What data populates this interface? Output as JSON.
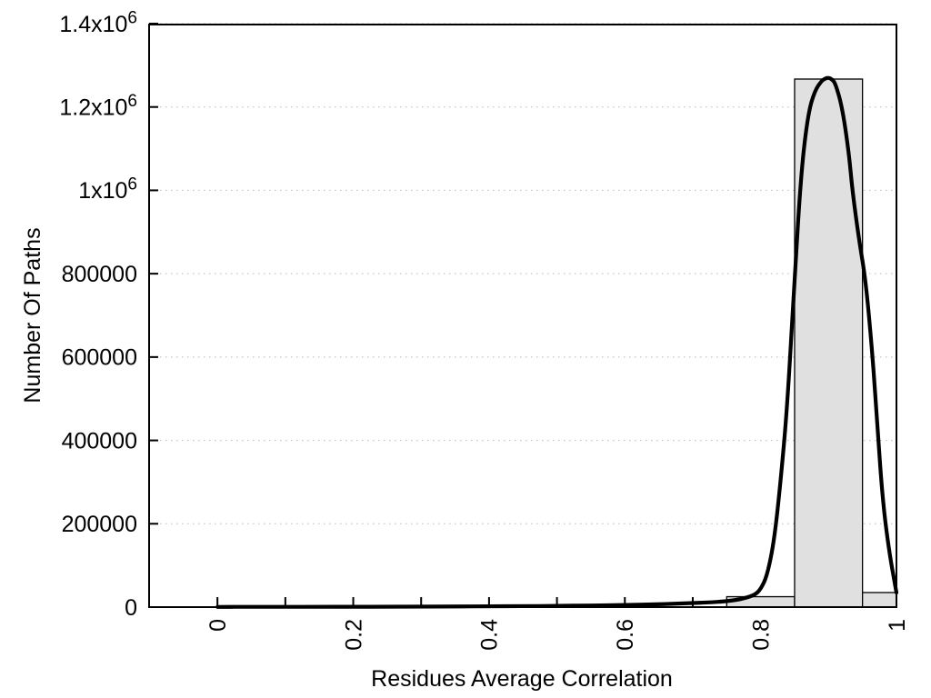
{
  "chart_data": {
    "type": "bar",
    "subtype": "histogram-with-density-curve",
    "title": "",
    "xlabel": "Residues Average Correlation",
    "ylabel": "Number Of Paths",
    "xlim": [
      -0.102,
      1.0
    ],
    "ylim": [
      0,
      1400000
    ],
    "grid": "horizontal-dotted",
    "legend": "none",
    "x_ticks": [
      {
        "v": 0.0,
        "label": "0"
      },
      {
        "v": 0.1,
        "label": ""
      },
      {
        "v": 0.2,
        "label": "0.2"
      },
      {
        "v": 0.3,
        "label": ""
      },
      {
        "v": 0.4,
        "label": "0.4"
      },
      {
        "v": 0.5,
        "label": ""
      },
      {
        "v": 0.6,
        "label": "0.6"
      },
      {
        "v": 0.7,
        "label": ""
      },
      {
        "v": 0.8,
        "label": "0.8"
      },
      {
        "v": 0.9,
        "label": ""
      },
      {
        "v": 1.0,
        "label": "1"
      }
    ],
    "y_ticks": [
      {
        "v": 0,
        "label": "0"
      },
      {
        "v": 200000,
        "label": "200000"
      },
      {
        "v": 400000,
        "label": "400000"
      },
      {
        "v": 600000,
        "label": "600000"
      },
      {
        "v": 800000,
        "label": "800000"
      },
      {
        "v": 1000000,
        "label": "1x10^6"
      },
      {
        "v": 1200000,
        "label": "1.2x10^6"
      },
      {
        "v": 1400000,
        "label": "1.4x10^6"
      }
    ],
    "bars": [
      {
        "x0": 0.75,
        "x1": 0.85,
        "count": 25000
      },
      {
        "x0": 0.85,
        "x1": 0.95,
        "count": 1267000
      },
      {
        "x0": 0.95,
        "x1": 1.0,
        "count": 35000
      }
    ],
    "curve": [
      [
        0.0,
        500
      ],
      [
        0.05,
        600
      ],
      [
        0.1,
        700
      ],
      [
        0.15,
        800
      ],
      [
        0.2,
        900
      ],
      [
        0.25,
        1000
      ],
      [
        0.3,
        1200
      ],
      [
        0.35,
        1500
      ],
      [
        0.4,
        1900
      ],
      [
        0.45,
        2400
      ],
      [
        0.5,
        3000
      ],
      [
        0.55,
        3800
      ],
      [
        0.6,
        5000
      ],
      [
        0.64,
        6500
      ],
      [
        0.68,
        8500
      ],
      [
        0.72,
        11000
      ],
      [
        0.75,
        14000
      ],
      [
        0.77,
        18500
      ],
      [
        0.79,
        28000
      ],
      [
        0.8,
        42000
      ],
      [
        0.81,
        78000
      ],
      [
        0.82,
        160000
      ],
      [
        0.83,
        310000
      ],
      [
        0.84,
        500000
      ],
      [
        0.85,
        790000
      ],
      [
        0.86,
        1050000
      ],
      [
        0.87,
        1185000
      ],
      [
        0.88,
        1240000
      ],
      [
        0.89,
        1263000
      ],
      [
        0.895,
        1268500
      ],
      [
        0.9,
        1270500
      ],
      [
        0.905,
        1266500
      ],
      [
        0.91,
        1257000
      ],
      [
        0.92,
        1200000
      ],
      [
        0.93,
        1090000
      ],
      [
        0.935,
        1000000
      ],
      [
        0.945,
        880000
      ],
      [
        0.955,
        780000
      ],
      [
        0.965,
        600000
      ],
      [
        0.972,
        430000
      ],
      [
        0.98,
        250000
      ],
      [
        0.99,
        125000
      ],
      [
        1.0,
        35000
      ]
    ],
    "colors": {
      "background": "#ffffff",
      "bar_fill": "#e0e0e0",
      "bar_border": "#000000",
      "curve": "#000000",
      "grid": "#b8b8b8",
      "axis": "#000000",
      "text": "#000000"
    }
  }
}
